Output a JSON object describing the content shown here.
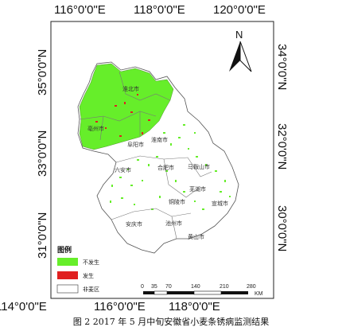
{
  "map": {
    "north_label": "N",
    "lon_top": [
      "116°0'0\"E",
      "118°0'0\"E",
      "120°0'0\"E"
    ],
    "lon_bottom": [
      "114°0'0\"E",
      "116°0'0\"E",
      "118°0'0\"E"
    ],
    "lat_left": [
      "35°0'0\"N",
      "33°0'0\"N",
      "31°0'0\"N"
    ],
    "lat_right": [
      "34°0'0\"N",
      "32°0'0\"N",
      "30°0'0\"N"
    ],
    "cities": [
      "淮北市",
      "亳州市",
      "阜阳市",
      "淮南市",
      "六安市",
      "合肥市",
      "马鞍山市",
      "芜湖市",
      "铜陵市",
      "宣城市",
      "安庆市",
      "池州市",
      "黄山市"
    ],
    "colors": {
      "not_occurred": "#66ee2a",
      "occurred": "#e02020",
      "non_wheat": "#ffffff",
      "outline": "#555555"
    }
  },
  "legend": {
    "title": "图例",
    "items": [
      {
        "label": "不发生",
        "color": "#66ee2a"
      },
      {
        "label": "发生",
        "color": "#e02020"
      },
      {
        "label": "非麦区",
        "color": "#ffffff"
      }
    ]
  },
  "scale": {
    "ticks": [
      "0",
      "35",
      "70",
      "140",
      "210",
      "280"
    ],
    "unit": "KM"
  },
  "caption": "图 2 2017 年 5 月中旬安徽省小麦条锈病监测结果"
}
